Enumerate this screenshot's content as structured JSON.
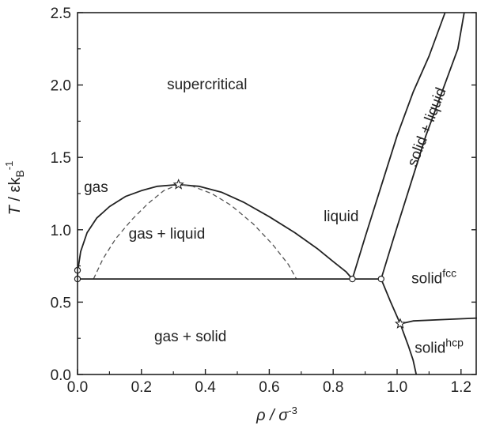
{
  "chart_data": {
    "type": "line",
    "xlabel": {
      "main": "ρ / σ",
      "sup": "-3"
    },
    "ylabel": {
      "italic": "T",
      "rest": " / εk",
      "sub": "B",
      "sup": "-1"
    },
    "xlim": [
      0.0,
      1.25
    ],
    "ylim": [
      0.0,
      2.5
    ],
    "x_ticks": [
      0.0,
      0.2,
      0.4,
      0.6,
      0.8,
      1.0,
      1.2
    ],
    "x_tick_labels": [
      "0.0",
      "0.2",
      "0.4",
      "0.6",
      "0.8",
      "1.0",
      "1.2"
    ],
    "y_ticks": [
      0.0,
      0.5,
      1.0,
      1.5,
      2.0,
      2.5
    ],
    "y_tick_labels": [
      "0.0",
      "0.5",
      "1.0",
      "1.5",
      "2.0",
      "2.5"
    ],
    "grid": false,
    "series": [
      {
        "style": "solid",
        "points": [
          [
            0.0,
            0.66
          ],
          [
            0.001,
            0.72
          ],
          [
            0.01,
            0.85
          ],
          [
            0.03,
            0.98
          ],
          [
            0.06,
            1.08
          ],
          [
            0.1,
            1.16
          ],
          [
            0.15,
            1.23
          ],
          [
            0.2,
            1.27
          ],
          [
            0.25,
            1.3
          ],
          [
            0.316,
            1.312
          ],
          [
            0.38,
            1.3
          ],
          [
            0.45,
            1.26
          ],
          [
            0.52,
            1.19
          ],
          [
            0.6,
            1.09
          ],
          [
            0.68,
            0.98
          ],
          [
            0.75,
            0.87
          ],
          [
            0.8,
            0.78
          ],
          [
            0.84,
            0.71
          ],
          [
            0.86,
            0.66
          ]
        ]
      },
      {
        "style": "dashed",
        "points": [
          [
            0.05,
            0.66
          ],
          [
            0.08,
            0.8
          ],
          [
            0.12,
            0.94
          ],
          [
            0.17,
            1.07
          ],
          [
            0.22,
            1.18
          ],
          [
            0.27,
            1.27
          ],
          [
            0.316,
            1.312
          ],
          [
            0.36,
            1.3
          ],
          [
            0.42,
            1.25
          ],
          [
            0.48,
            1.17
          ],
          [
            0.55,
            1.04
          ],
          [
            0.61,
            0.9
          ],
          [
            0.66,
            0.76
          ],
          [
            0.685,
            0.66
          ]
        ]
      },
      {
        "style": "solid",
        "points": [
          [
            0.0,
            0.66
          ],
          [
            0.95,
            0.66
          ]
        ]
      },
      {
        "style": "solid",
        "points": [
          [
            0.86,
            0.66
          ],
          [
            0.9,
            0.95
          ],
          [
            0.95,
            1.3
          ],
          [
            1.0,
            1.65
          ],
          [
            1.05,
            1.95
          ],
          [
            1.1,
            2.2
          ],
          [
            1.15,
            2.5
          ]
        ]
      },
      {
        "style": "solid",
        "points": [
          [
            0.95,
            0.66
          ],
          [
            0.99,
            0.95
          ],
          [
            1.04,
            1.3
          ],
          [
            1.09,
            1.65
          ],
          [
            1.14,
            1.95
          ],
          [
            1.19,
            2.25
          ],
          [
            1.21,
            2.5
          ]
        ]
      },
      {
        "style": "solid",
        "points": [
          [
            0.95,
            0.66
          ],
          [
            0.98,
            0.5
          ],
          [
            1.01,
            0.35
          ],
          [
            1.035,
            0.2
          ],
          [
            1.05,
            0.1
          ],
          [
            1.06,
            0.0
          ]
        ]
      },
      {
        "style": "solid",
        "points": [
          [
            1.01,
            0.35
          ],
          [
            1.05,
            0.37
          ],
          [
            1.15,
            0.38
          ],
          [
            1.25,
            0.39
          ]
        ]
      }
    ],
    "markers": [
      {
        "shape": "circle",
        "x": 0.0,
        "y": 0.66
      },
      {
        "shape": "circle",
        "x": 0.86,
        "y": 0.66
      },
      {
        "shape": "circle",
        "x": 0.95,
        "y": 0.66
      },
      {
        "shape": "circle",
        "x": 0.0,
        "y": 0.72
      },
      {
        "shape": "star",
        "x": 0.316,
        "y": 1.312
      },
      {
        "shape": "star",
        "x": 1.01,
        "y": 0.35
      }
    ],
    "annotations": [
      {
        "text": "supercritical",
        "x": 0.28,
        "y": 1.97
      },
      {
        "text": "gas",
        "x": 0.02,
        "y": 1.26
      },
      {
        "text": "gas + liquid",
        "x": 0.16,
        "y": 0.94
      },
      {
        "text": "liquid",
        "x": 0.77,
        "y": 1.06
      },
      {
        "text": "solid + liquid",
        "x": 1.06,
        "y": 1.43,
        "rotate": -69
      },
      {
        "text": "solid",
        "sup": "fcc",
        "x": 1.045,
        "y": 0.63
      },
      {
        "text": "solid",
        "sup": "hcp",
        "x": 1.055,
        "y": 0.15
      },
      {
        "text": "gas + solid",
        "x": 0.24,
        "y": 0.23
      }
    ]
  }
}
